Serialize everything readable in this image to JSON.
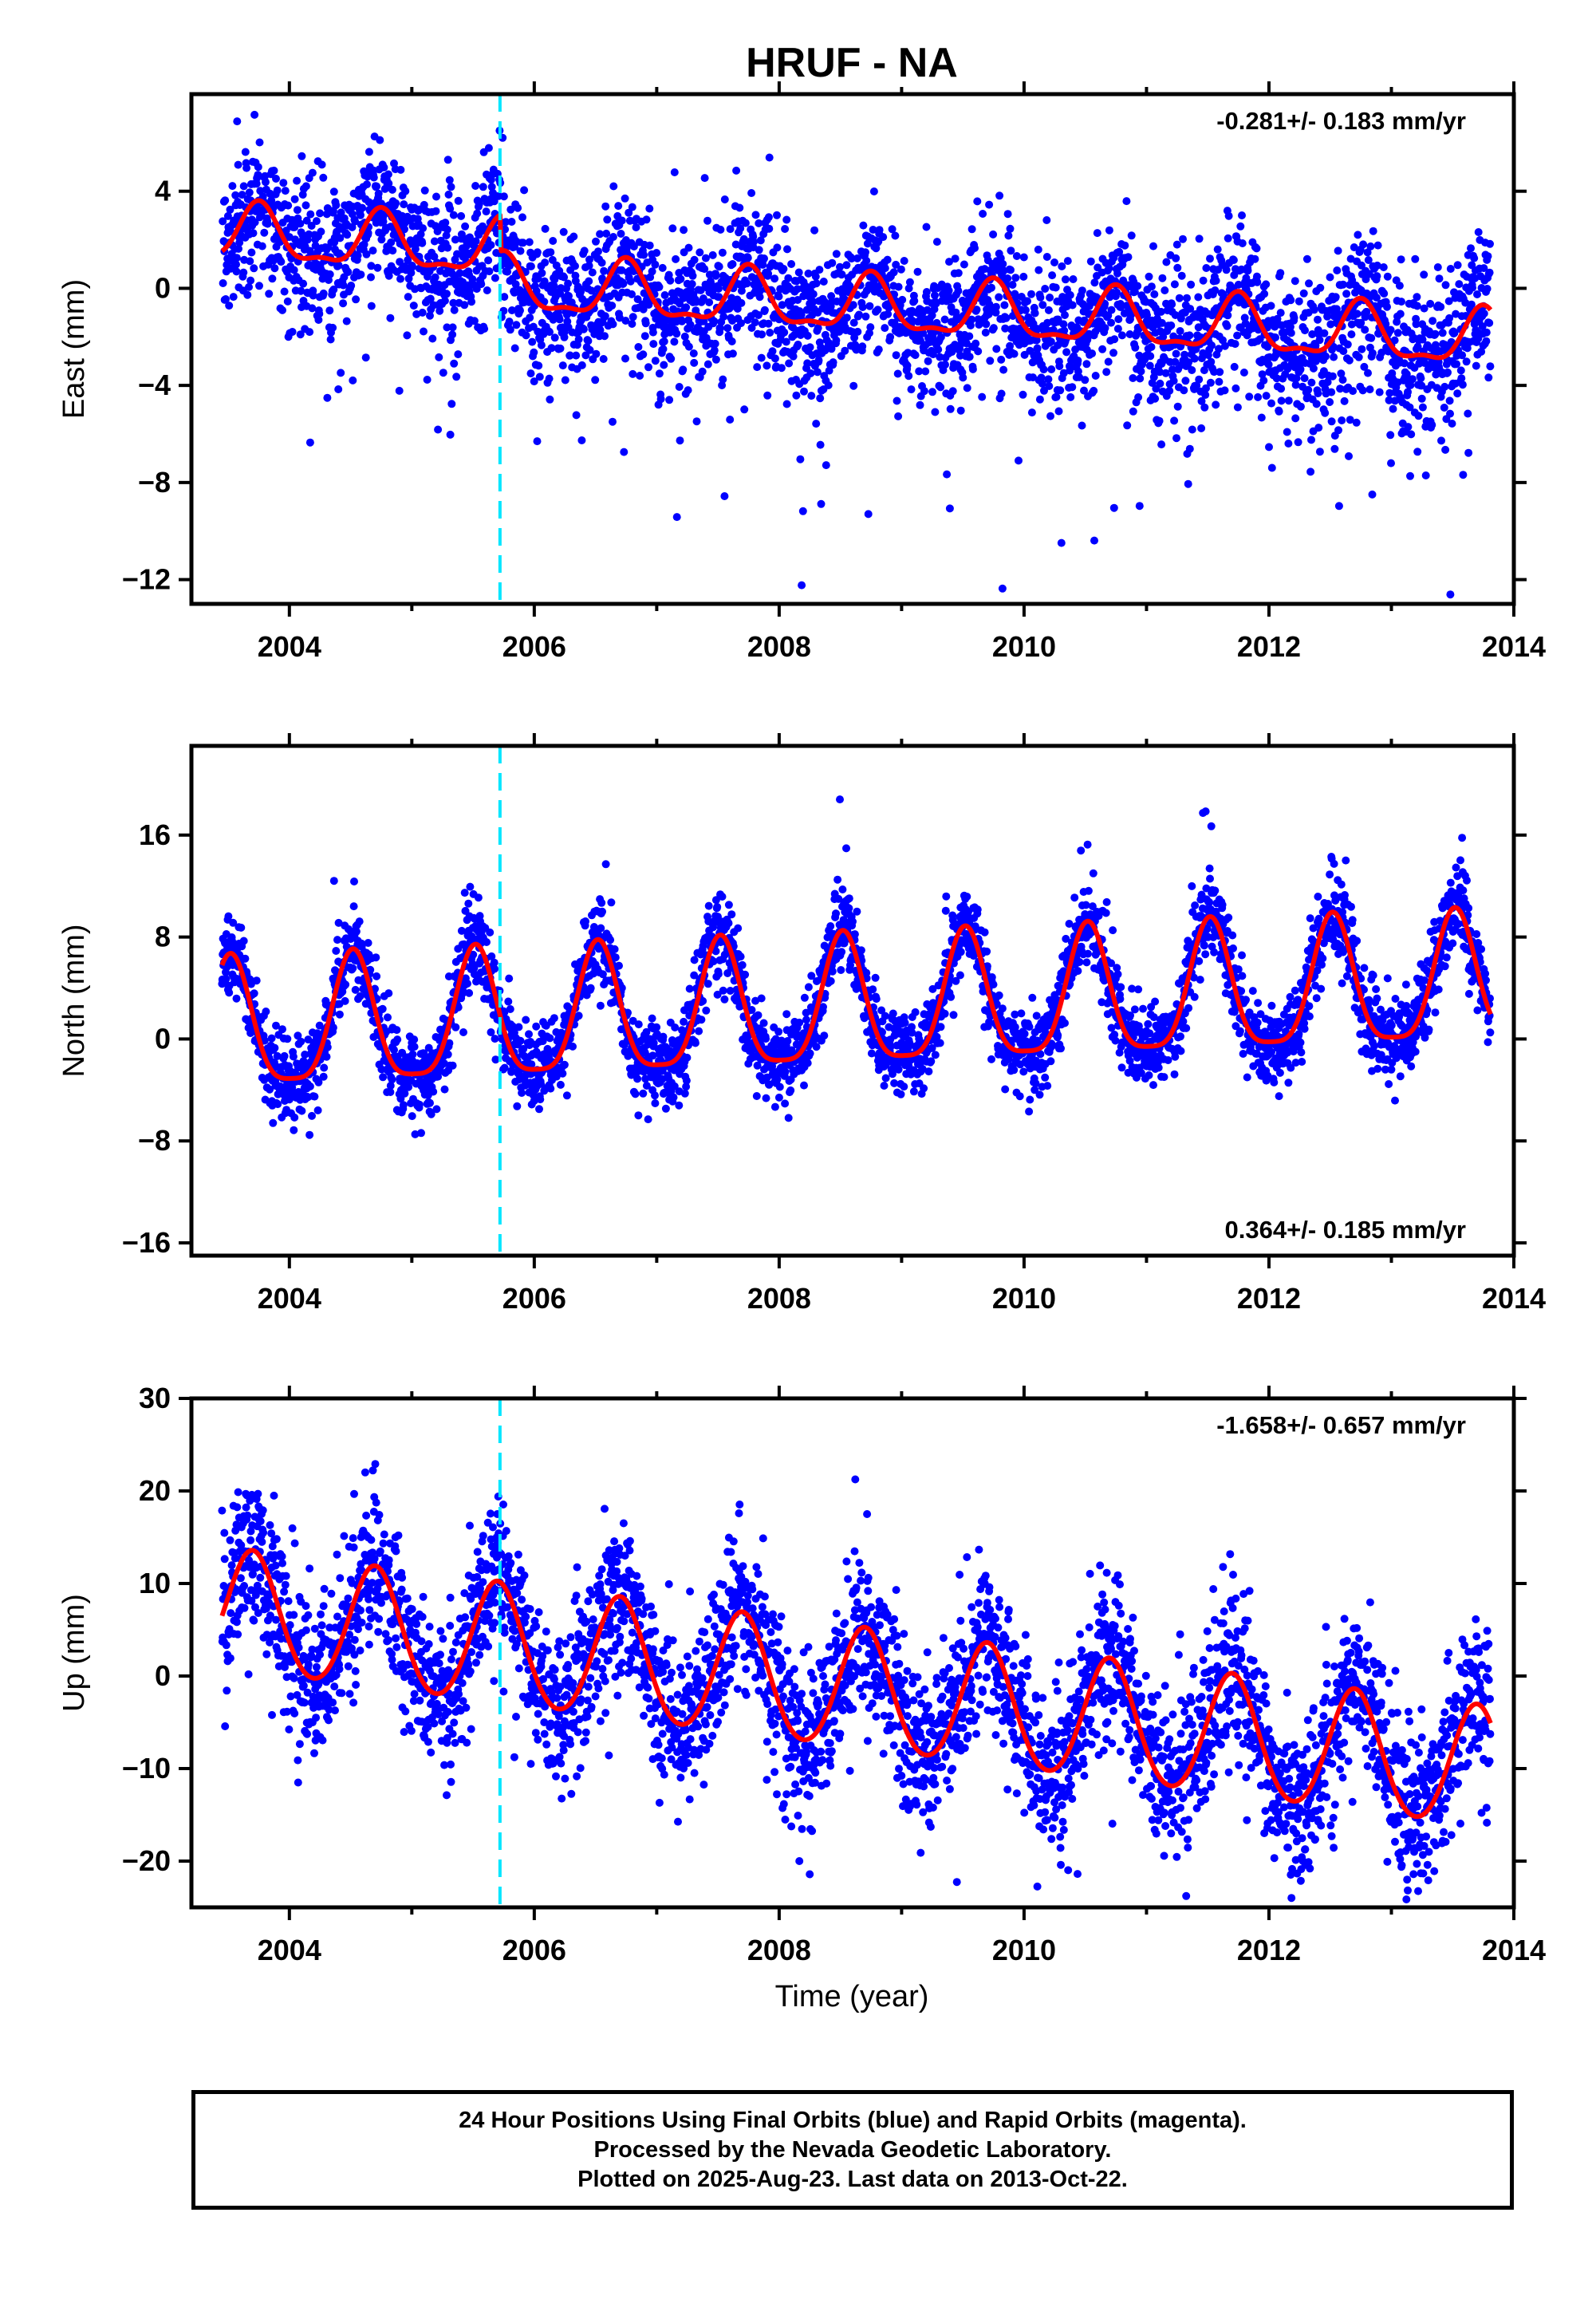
{
  "title": "HRUF - NA",
  "xlabel": "Time (year)",
  "colors": {
    "final_orbits": "#0000ff",
    "model_fit": "#ff0000",
    "antenna_change": "#00e6ff",
    "frame": "#000000"
  },
  "footer": {
    "line1": "24 Hour Positions Using Final Orbits (blue) and Rapid Orbits (magenta).",
    "line2": "Processed by the Nevada Geodetic Laboratory.",
    "line3": "Plotted on 2025-Aug-23. Last data on 2013-Oct-22."
  },
  "chart_data": [
    {
      "type": "scatter",
      "ylabel": "East (mm)",
      "xlim": [
        2003.2,
        2014.0
      ],
      "ylim": [
        -13.0,
        8.0
      ],
      "xticks": [
        2004,
        2006,
        2008,
        2010,
        2012,
        2014
      ],
      "yticks": [
        4,
        0,
        -4,
        -8,
        -12
      ],
      "rate_label": "-0.281+/- 0.183 mm/yr",
      "rate_position": "top-right",
      "vertical_line_x": 2005.72,
      "data_range_x": [
        2003.45,
        2013.81
      ],
      "model": {
        "offset_mm": 2.2,
        "trend_mm_per_yr": -0.28,
        "annual_amp_mm": 1.1,
        "annual_phase_yr": 0.75,
        "semiannual_amp_mm": 0.4,
        "steps": [
          {
            "x": 2005.72,
            "dy": -1.5
          }
        ]
      },
      "scatter_sigma_mm": 1.5,
      "scatter_outlier_tail": "negative"
    },
    {
      "type": "scatter",
      "ylabel": "North (mm)",
      "xlim": [
        2003.2,
        2014.0
      ],
      "ylim": [
        -17.0,
        23.0
      ],
      "xticks": [
        2004,
        2006,
        2008,
        2010,
        2012,
        2014
      ],
      "yticks": [
        16,
        8,
        0,
        -8,
        -16
      ],
      "rate_label": "0.364+/- 0.185 mm/yr",
      "rate_position": "bottom-right",
      "vertical_line_x": 2005.72,
      "data_range_x": [
        2003.45,
        2013.81
      ],
      "model": {
        "offset_mm": 0.5,
        "trend_mm_per_yr": 0.36,
        "annual_amp_mm": 5.0,
        "annual_phase_yr": 0.52,
        "semiannual_amp_mm": 1.2,
        "steps": []
      },
      "scatter_sigma_mm": 1.6,
      "scatter_outlier_tail": "positive-summer"
    },
    {
      "type": "scatter",
      "ylabel": "Up (mm)",
      "xlim": [
        2003.2,
        2014.0
      ],
      "ylim": [
        -25.0,
        30.0
      ],
      "xticks": [
        2004,
        2006,
        2008,
        2010,
        2012,
        2014
      ],
      "yticks": [
        30,
        20,
        10,
        0,
        -10,
        -20
      ],
      "rate_label": "-1.658+/- 0.657 mm/yr",
      "rate_position": "top-right",
      "vertical_line_x": 2005.72,
      "data_range_x": [
        2003.45,
        2013.81
      ],
      "model": {
        "offset_mm": 7.0,
        "trend_mm_per_yr": -1.66,
        "annual_amp_mm": 6.5,
        "annual_phase_yr": 0.7,
        "semiannual_amp_mm": 0.5,
        "steps": []
      },
      "scatter_sigma_mm": 4.3,
      "scatter_outlier_tail": "both"
    }
  ]
}
